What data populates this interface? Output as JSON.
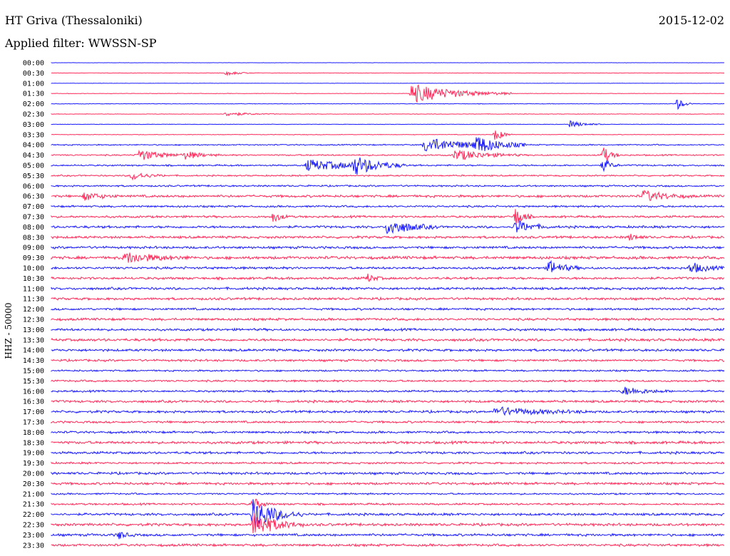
{
  "header": {
    "station": "HT Griva (Thessaloniki)",
    "date": "2015-12-02",
    "filter": "Applied filter: WWSSN-SP"
  },
  "colors": {
    "trace_even": "#1a1aff",
    "trace_odd": "#ff2a5a",
    "background": "#ffffff"
  },
  "chart_data": {
    "type": "line",
    "title": "HT Griva (Thessaloniki)",
    "ylabel": "HHZ - 50000",
    "y_tick_labels": [
      "00:00",
      "00:30",
      "01:00",
      "01:30",
      "02:00",
      "02:30",
      "03:00",
      "03:30",
      "04:00",
      "04:30",
      "05:00",
      "05:30",
      "06:00",
      "06:30",
      "07:00",
      "07:30",
      "08:00",
      "08:30",
      "09:00",
      "09:30",
      "10:00",
      "10:30",
      "11:00",
      "11:30",
      "12:00",
      "12:30",
      "13:00",
      "13:30",
      "14:00",
      "14:30",
      "15:00",
      "15:30",
      "16:00",
      "16:30",
      "17:00",
      "17:30",
      "18:00",
      "18:30",
      "19:00",
      "19:30",
      "20:00",
      "20:30",
      "21:00",
      "21:30",
      "22:00",
      "22:30",
      "23:00",
      "23:30"
    ],
    "trace_noise": [
      0.2,
      0.3,
      0.3,
      0.4,
      0.5,
      0.4,
      0.4,
      0.5,
      1.0,
      1.2,
      1.3,
      1.2,
      1.4,
      2.0,
      1.6,
      1.8,
      2.0,
      2.0,
      2.0,
      2.4,
      2.0,
      2.0,
      2.0,
      2.0,
      1.8,
      2.0,
      2.0,
      2.2,
      2.0,
      1.8,
      1.4,
      1.6,
      1.6,
      2.0,
      2.0,
      1.8,
      1.8,
      2.2,
      2.0,
      1.6,
      2.0,
      2.0,
      1.4,
      1.6,
      2.0,
      2.2,
      2.0,
      2.0
    ],
    "events": [
      {
        "row": 1,
        "x": 0.26,
        "amp": 3,
        "width": 0.02
      },
      {
        "row": 3,
        "x": 0.535,
        "amp": 14,
        "width": 0.06
      },
      {
        "row": 4,
        "x": 0.93,
        "amp": 8,
        "width": 0.01
      },
      {
        "row": 5,
        "x": 0.26,
        "amp": 3,
        "width": 0.03
      },
      {
        "row": 6,
        "x": 0.77,
        "amp": 5,
        "width": 0.02
      },
      {
        "row": 7,
        "x": 0.66,
        "amp": 10,
        "width": 0.01
      },
      {
        "row": 8,
        "x": 0.555,
        "amp": 10,
        "width": 0.06
      },
      {
        "row": 8,
        "x": 0.63,
        "amp": 11,
        "width": 0.03
      },
      {
        "row": 9,
        "x": 0.13,
        "amp": 8,
        "width": 0.03
      },
      {
        "row": 9,
        "x": 0.2,
        "amp": 6,
        "width": 0.02
      },
      {
        "row": 9,
        "x": 0.6,
        "amp": 8,
        "width": 0.04
      },
      {
        "row": 9,
        "x": 0.82,
        "amp": 12,
        "width": 0.01
      },
      {
        "row": 10,
        "x": 0.38,
        "amp": 8,
        "width": 0.06
      },
      {
        "row": 10,
        "x": 0.45,
        "amp": 12,
        "width": 0.03
      },
      {
        "row": 10,
        "x": 0.82,
        "amp": 10,
        "width": 0.01
      },
      {
        "row": 11,
        "x": 0.12,
        "amp": 6,
        "width": 0.02
      },
      {
        "row": 13,
        "x": 0.05,
        "amp": 6,
        "width": 0.02
      },
      {
        "row": 13,
        "x": 0.88,
        "amp": 8,
        "width": 0.03
      },
      {
        "row": 15,
        "x": 0.33,
        "amp": 8,
        "width": 0.01
      },
      {
        "row": 15,
        "x": 0.69,
        "amp": 14,
        "width": 0.01
      },
      {
        "row": 16,
        "x": 0.5,
        "amp": 12,
        "width": 0.03
      },
      {
        "row": 16,
        "x": 0.69,
        "amp": 10,
        "width": 0.02
      },
      {
        "row": 17,
        "x": 0.86,
        "amp": 5,
        "width": 0.01
      },
      {
        "row": 19,
        "x": 0.11,
        "amp": 8,
        "width": 0.04
      },
      {
        "row": 20,
        "x": 0.74,
        "amp": 10,
        "width": 0.02
      },
      {
        "row": 20,
        "x": 0.95,
        "amp": 8,
        "width": 0.02
      },
      {
        "row": 21,
        "x": 0.47,
        "amp": 6,
        "width": 0.01
      },
      {
        "row": 32,
        "x": 0.85,
        "amp": 6,
        "width": 0.03
      },
      {
        "row": 34,
        "x": 0.66,
        "amp": 6,
        "width": 0.06
      },
      {
        "row": 43,
        "x": 0.3,
        "amp": 10,
        "width": 0.01
      },
      {
        "row": 44,
        "x": 0.3,
        "amp": 22,
        "width": 0.03
      },
      {
        "row": 45,
        "x": 0.3,
        "amp": 18,
        "width": 0.03
      },
      {
        "row": 46,
        "x": 0.1,
        "amp": 6,
        "width": 0.01
      }
    ]
  }
}
